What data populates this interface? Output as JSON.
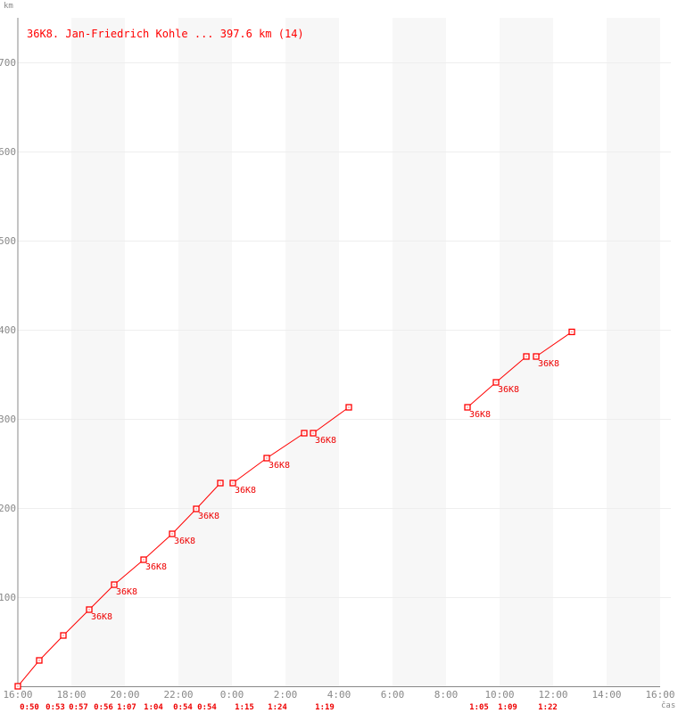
{
  "chart_data": {
    "type": "line",
    "title": "36K8. Jan-Friedrich Kohle ... 397.6 km (14)",
    "xlabel": "čas",
    "ylabel": "km",
    "xlim": [
      "16:00",
      "16:00"
    ],
    "ylim": [
      0,
      750
    ],
    "x_ticks": [
      "16:00",
      "18:00",
      "20:00",
      "22:00",
      "0:00",
      "2:00",
      "4:00",
      "6:00",
      "8:00",
      "10:00",
      "12:00",
      "14:00",
      "16:00"
    ],
    "y_ticks": [
      100,
      200,
      300,
      400,
      500,
      600,
      700
    ],
    "grid": true,
    "shaded_bands": [
      [
        "18:00",
        "20:00"
      ],
      [
        "22:00",
        "0:00"
      ],
      [
        "2:00",
        "4:00"
      ],
      [
        "6:00",
        "8:00"
      ],
      [
        "10:00",
        "12:00"
      ],
      [
        "14:00",
        "16:00"
      ]
    ],
    "colors": {
      "series": "#ff0000",
      "axis": "#888888",
      "grid": "#eeeeee",
      "band": "#f7f7f7"
    },
    "segments": [
      [
        {
          "t": "16:00",
          "km": 0
        },
        {
          "t": "16:48",
          "km": 29
        },
        {
          "t": "17:42",
          "km": 57
        },
        {
          "t": "18:40",
          "km": 86,
          "label": "36K8"
        },
        {
          "t": "19:36",
          "km": 114,
          "label": "36K8"
        },
        {
          "t": "20:42",
          "km": 142,
          "label": "36K8"
        },
        {
          "t": "21:46",
          "km": 171,
          "label": "36K8"
        },
        {
          "t": "22:40",
          "km": 199,
          "label": "36K8"
        },
        {
          "t": "23:34",
          "km": 228
        }
      ],
      [
        {
          "t": "0:02",
          "km": 228,
          "label": "36K8"
        },
        {
          "t": "1:18",
          "km": 256,
          "label": "36K8"
        },
        {
          "t": "2:42",
          "km": 284
        }
      ],
      [
        {
          "t": "3:02",
          "km": 284,
          "label": "36K8"
        },
        {
          "t": "4:22",
          "km": 313
        }
      ],
      [
        {
          "t": "8:48",
          "km": 313,
          "label": "36K8"
        },
        {
          "t": "9:52",
          "km": 341,
          "label": "36K8"
        },
        {
          "t": "11:00",
          "km": 370
        }
      ],
      [
        {
          "t": "11:22",
          "km": 370,
          "label": "36K8"
        },
        {
          "t": "12:42",
          "km": 397.6
        }
      ]
    ],
    "lap_times": [
      {
        "t": "16:26",
        "label": "0:50"
      },
      {
        "t": "17:24",
        "label": "0:53"
      },
      {
        "t": "18:16",
        "label": "0:57"
      },
      {
        "t": "19:12",
        "label": "0:56"
      },
      {
        "t": "20:04",
        "label": "1:07"
      },
      {
        "t": "21:04",
        "label": "1:04"
      },
      {
        "t": "22:10",
        "label": "0:54"
      },
      {
        "t": "23:04",
        "label": "0:54"
      },
      {
        "t": "0:28",
        "label": "1:15"
      },
      {
        "t": "1:42",
        "label": "1:24"
      },
      {
        "t": "3:28",
        "label": "1:19"
      },
      {
        "t": "9:14",
        "label": "1:05"
      },
      {
        "t": "10:18",
        "label": "1:09"
      },
      {
        "t": "11:48",
        "label": "1:22"
      }
    ]
  }
}
